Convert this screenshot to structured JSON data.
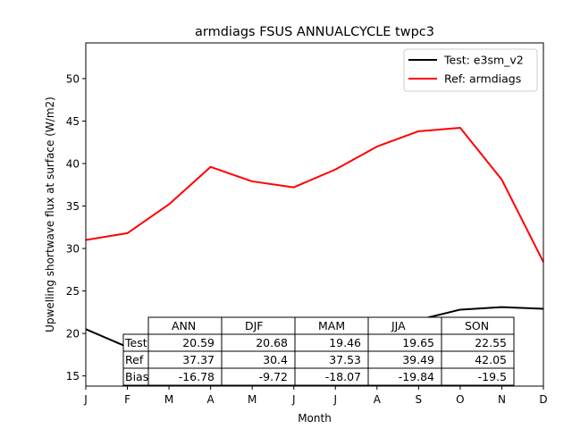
{
  "chart_data": {
    "type": "line",
    "title": "armdiags FSUS ANNUALCYCLE twpc3",
    "xlabel": "Month",
    "ylabel": "Upwelling shortwave flux at surface (W/m2)",
    "x_tick_labels": [
      "J",
      "F",
      "M",
      "A",
      "M",
      "J",
      "J",
      "A",
      "S",
      "O",
      "N",
      "D"
    ],
    "y_ticks": [
      15,
      20,
      25,
      30,
      35,
      40,
      45,
      50
    ],
    "ylim": [
      13.8,
      54.2
    ],
    "xlim": [
      1,
      12
    ],
    "grid": false,
    "legend_position": "top-right",
    "series": [
      {
        "name": "Test: e3sm_v2",
        "color": "#000000",
        "x": [
          1,
          2,
          3,
          4,
          5,
          6,
          7,
          8,
          9,
          10,
          11,
          12
        ],
        "values": [
          20.5,
          18.4,
          20.0,
          19.5,
          18.8,
          19.2,
          19.5,
          20.3,
          21.6,
          22.8,
          23.1,
          22.9
        ]
      },
      {
        "name": "Ref: armdiags",
        "color": "#ff0000",
        "x": [
          1,
          2,
          3,
          4,
          5,
          6,
          7,
          8,
          9,
          10,
          11,
          12
        ],
        "values": [
          31.0,
          31.8,
          35.2,
          39.6,
          37.9,
          37.2,
          39.3,
          42.0,
          43.8,
          44.2,
          38.1,
          28.4
        ]
      }
    ],
    "table": {
      "columns": [
        "ANN",
        "DJF",
        "MAM",
        "JJA",
        "SON"
      ],
      "rows": [
        {
          "label": "Test",
          "values": [
            "20.59",
            "20.68",
            "19.46",
            "19.65",
            "22.55"
          ]
        },
        {
          "label": "Ref",
          "values": [
            "37.37",
            "30.4",
            "37.53",
            "39.49",
            "42.05"
          ]
        },
        {
          "label": "Bias",
          "values": [
            "-16.78",
            "-9.72",
            "-18.07",
            "-19.84",
            "-19.5"
          ]
        }
      ]
    }
  }
}
